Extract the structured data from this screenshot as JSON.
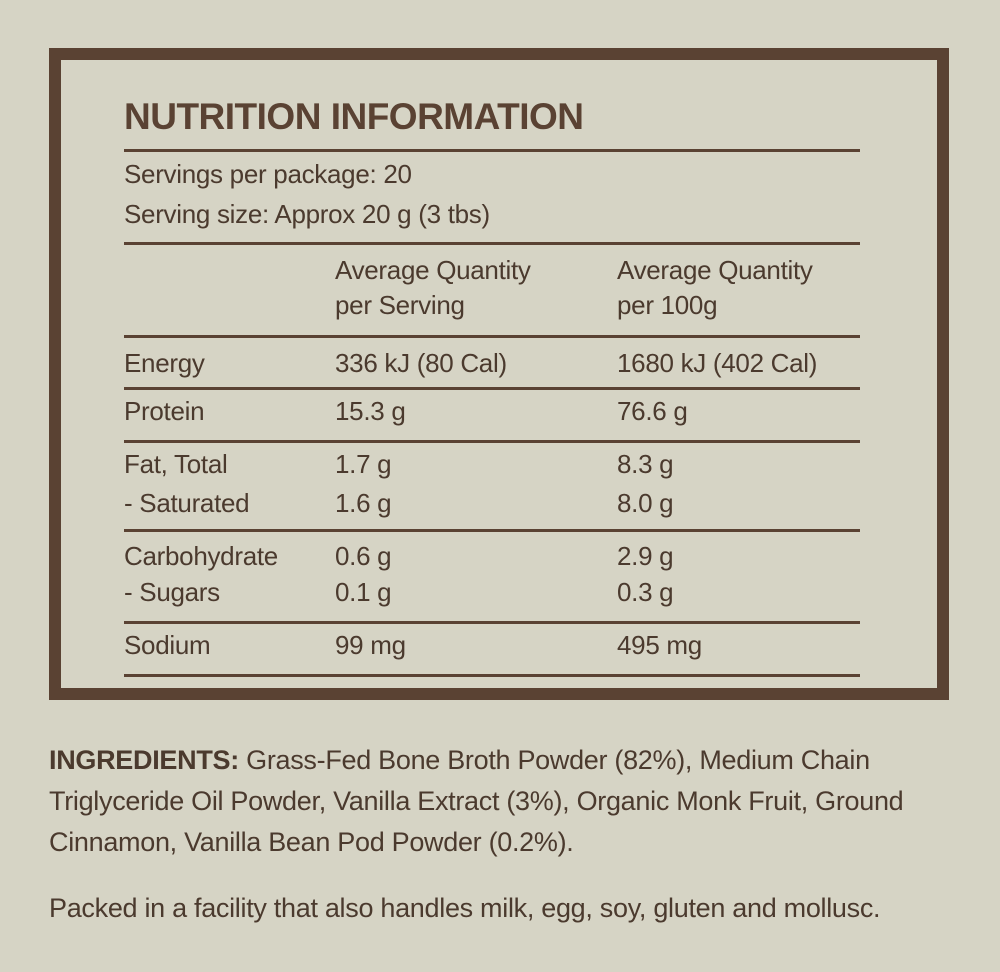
{
  "panel": {
    "title": "NUTRITION INFORMATION",
    "servings_per_package": "Servings per package: 20",
    "serving_size": "Serving size: Approx 20 g (3 tbs)",
    "headers": {
      "per_serving_line1": "Average Quantity",
      "per_serving_line2": "per Serving",
      "per_100g_line1": "Average Quantity",
      "per_100g_line2": "per 100g"
    },
    "rows": [
      {
        "label": "Energy",
        "per_serving": "336 kJ (80 Cal)",
        "per_100g": "1680 kJ (402 Cal)"
      },
      {
        "label": "Protein",
        "per_serving": "15.3 g",
        "per_100g": "76.6 g"
      },
      {
        "label": "Fat, Total",
        "per_serving": "1.7 g",
        "per_100g": "8.3 g"
      },
      {
        "label": "- Saturated",
        "per_serving": "1.6 g",
        "per_100g": "8.0 g"
      },
      {
        "label": "Carbohydrate",
        "per_serving": "0.6 g",
        "per_100g": "2.9 g"
      },
      {
        "label": "- Sugars",
        "per_serving": "0.1 g",
        "per_100g": "0.3 g"
      },
      {
        "label": "Sodium",
        "per_serving": "99 mg",
        "per_100g": "495 mg"
      }
    ]
  },
  "ingredients": {
    "label": "INGREDIENTS:",
    "text": " Grass-Fed Bone Broth Powder (82%), Medium Chain Triglyceride Oil Powder, Vanilla Extract (3%), Organic Monk Fruit, Ground Cinnamon, Vanilla Bean Pod Powder (0.2%)."
  },
  "allergen_note": "Packed in a facility that also handles milk, egg, soy, gluten and mollusc.",
  "colors": {
    "background": "#d6d4c5",
    "border": "#5a4233",
    "text": "#4b3a2e"
  }
}
